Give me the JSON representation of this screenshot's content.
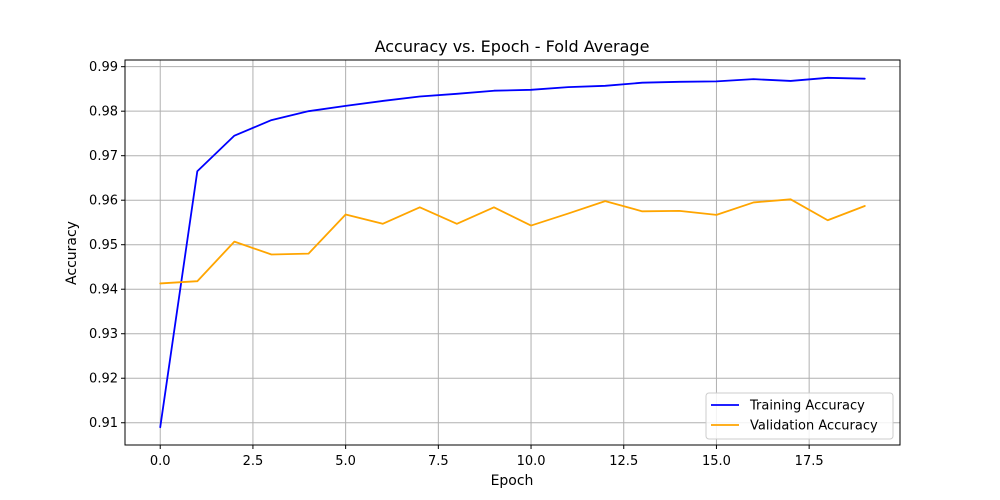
{
  "chart_data": {
    "type": "line",
    "title": "Accuracy vs. Epoch - Fold Average",
    "xlabel": "Epoch",
    "ylabel": "Accuracy",
    "xlim": [
      -0.95,
      19.95
    ],
    "ylim": [
      0.905,
      0.9915
    ],
    "xticks": [
      0.0,
      2.5,
      5.0,
      7.5,
      10.0,
      12.5,
      15.0,
      17.5
    ],
    "xtick_labels": [
      "0.0",
      "2.5",
      "5.0",
      "7.5",
      "10.0",
      "12.5",
      "15.0",
      "17.5"
    ],
    "yticks": [
      0.91,
      0.92,
      0.93,
      0.94,
      0.95,
      0.96,
      0.97,
      0.98,
      0.99
    ],
    "ytick_labels": [
      "0.91",
      "0.92",
      "0.93",
      "0.94",
      "0.95",
      "0.96",
      "0.97",
      "0.98",
      "0.99"
    ],
    "grid": true,
    "legend_position": "bottom-right",
    "x": [
      0,
      1,
      2,
      3,
      4,
      5,
      6,
      7,
      8,
      9,
      10,
      11,
      12,
      13,
      14,
      15,
      16,
      17,
      18,
      19
    ],
    "series": [
      {
        "name": "Training Accuracy",
        "color": "#0000ff",
        "values": [
          0.909,
          0.9665,
          0.9745,
          0.978,
          0.98,
          0.9812,
          0.9823,
          0.9833,
          0.9839,
          0.9846,
          0.9848,
          0.9854,
          0.9857,
          0.9864,
          0.9866,
          0.9867,
          0.9872,
          0.9868,
          0.9875,
          0.9873
        ]
      },
      {
        "name": "Validation Accuracy",
        "color": "#ffa500",
        "values": [
          0.9413,
          0.9418,
          0.9507,
          0.9478,
          0.948,
          0.9568,
          0.9547,
          0.9584,
          0.9547,
          0.9584,
          0.9543,
          0.957,
          0.9598,
          0.9575,
          0.9576,
          0.9567,
          0.9595,
          0.9602,
          0.9555,
          0.9587
        ]
      }
    ]
  }
}
